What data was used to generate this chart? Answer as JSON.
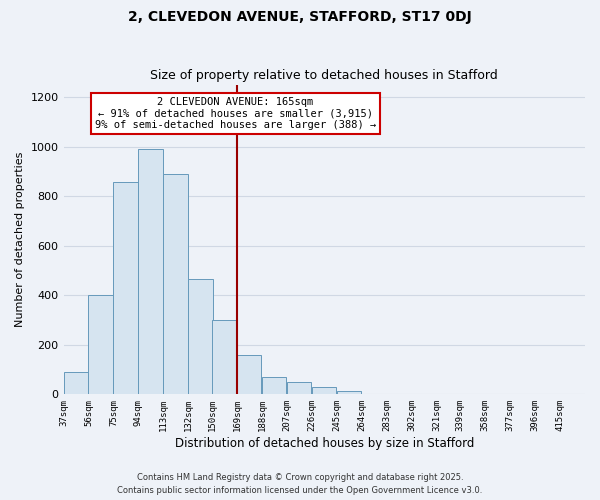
{
  "title": "2, CLEVEDON AVENUE, STAFFORD, ST17 0DJ",
  "subtitle": "Size of property relative to detached houses in Stafford",
  "xlabel": "Distribution of detached houses by size in Stafford",
  "ylabel": "Number of detached properties",
  "bar_color": "#d6e4f0",
  "bar_edge_color": "#6699bb",
  "vline_x": 169,
  "vline_color": "#990000",
  "categories": [
    "37sqm",
    "56sqm",
    "75sqm",
    "94sqm",
    "113sqm",
    "132sqm",
    "150sqm",
    "169sqm",
    "188sqm",
    "207sqm",
    "226sqm",
    "245sqm",
    "264sqm",
    "283sqm",
    "302sqm",
    "321sqm",
    "339sqm",
    "358sqm",
    "377sqm",
    "396sqm",
    "415sqm"
  ],
  "bin_edges": [
    37,
    56,
    75,
    94,
    113,
    132,
    150,
    169,
    188,
    207,
    226,
    245,
    264,
    283,
    302,
    321,
    339,
    358,
    377,
    396,
    415
  ],
  "values": [
    90,
    400,
    855,
    990,
    890,
    465,
    300,
    160,
    70,
    50,
    30,
    15,
    2,
    0,
    0,
    0,
    0,
    0,
    0,
    0
  ],
  "ylim": [
    0,
    1250
  ],
  "yticks": [
    0,
    200,
    400,
    600,
    800,
    1000,
    1200
  ],
  "annotation_title": "2 CLEVEDON AVENUE: 165sqm",
  "annotation_line1": "← 91% of detached houses are smaller (3,915)",
  "annotation_line2": "9% of semi-detached houses are larger (388) →",
  "annotation_box_color": "white",
  "annotation_box_edge_color": "#cc0000",
  "footnote1": "Contains HM Land Registry data © Crown copyright and database right 2025.",
  "footnote2": "Contains public sector information licensed under the Open Government Licence v3.0.",
  "background_color": "#eef2f8",
  "grid_color": "#d0d8e4"
}
